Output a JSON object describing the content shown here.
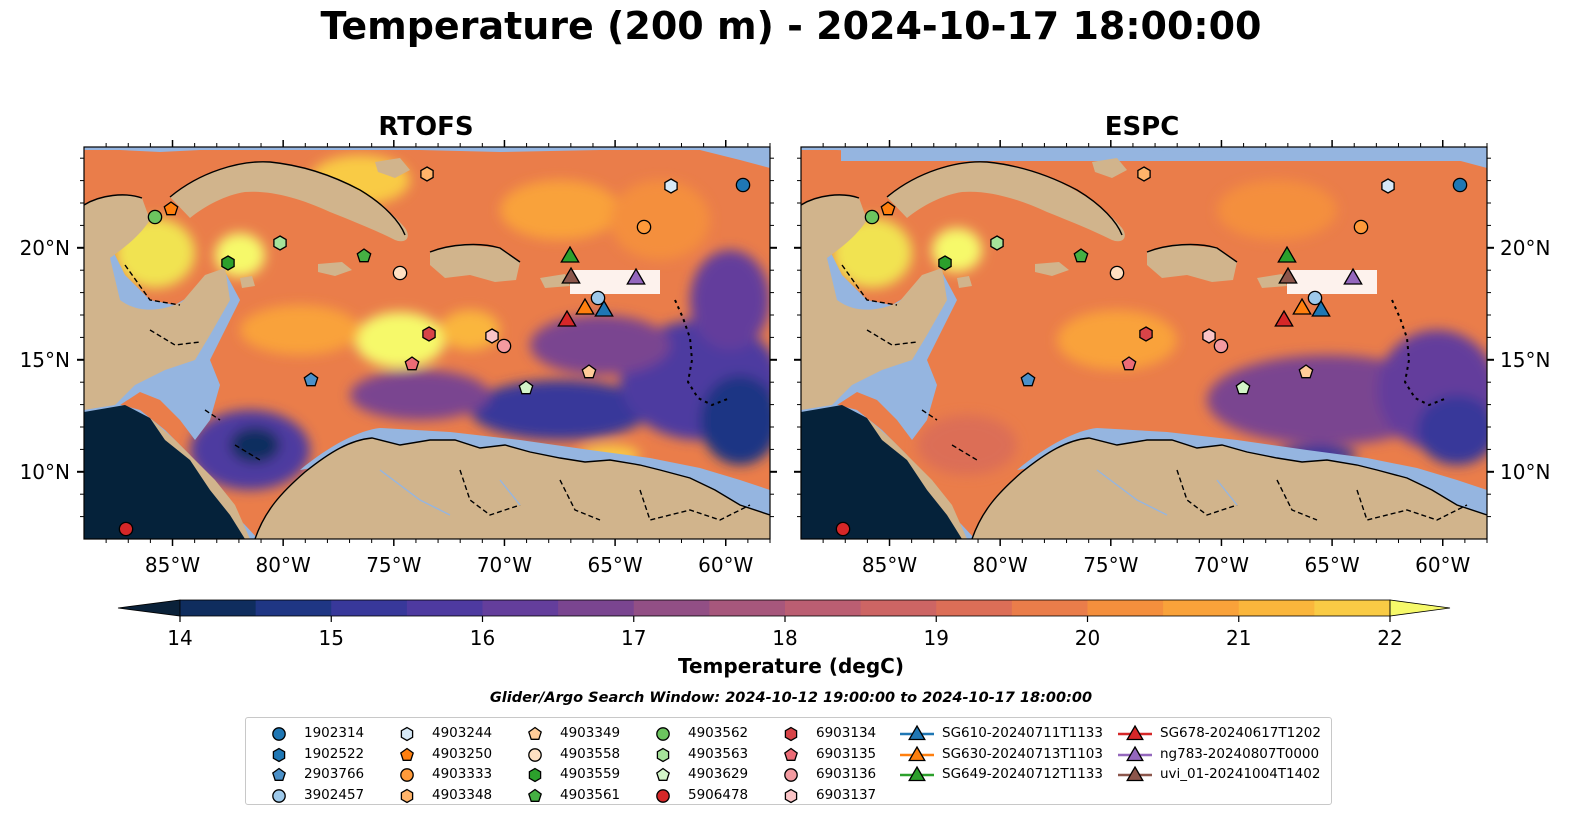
{
  "title": "Temperature (200 m) - 2024-10-17 18:00:00",
  "colors": {
    "ocean_shallow": "#95b5e0",
    "land": "#d1b48c",
    "outside": "#05223a",
    "colormap": [
      "#0a2139",
      "#0f2d5e",
      "#1f3684",
      "#38389a",
      "#4e3aa0",
      "#643e9c",
      "#7a4590",
      "#924f85",
      "#a7577c",
      "#bb5e72",
      "#cd6564",
      "#dc6e57",
      "#ea7d4a",
      "#f48f3d",
      "#f9a23a",
      "#fab63c",
      "#f9cb45",
      "#f1e351"
    ],
    "colormap_over": "#f6f96a"
  },
  "chart_data": [
    {
      "type": "heatmap",
      "title": "RTOFS",
      "x_ticks": [
        "85°W",
        "80°W",
        "75°W",
        "70°W",
        "65°W",
        "60°W"
      ],
      "y_ticks": [
        "20°N",
        "15°N",
        "10°N"
      ],
      "xlim": [
        -89,
        -58
      ],
      "ylim": [
        7,
        24.5
      ]
    },
    {
      "type": "heatmap",
      "title": "ESPC",
      "x_ticks": [
        "85°W",
        "80°W",
        "75°W",
        "70°W",
        "65°W",
        "60°W"
      ],
      "y_ticks": [
        "20°N",
        "15°N",
        "10°N"
      ],
      "xlim": [
        -89,
        -58
      ],
      "ylim": [
        7,
        24.5
      ]
    }
  ],
  "colorbar": {
    "label": "Temperature (degC)",
    "min": 14,
    "max": 22,
    "ticks": [
      "14",
      "15",
      "16",
      "17",
      "18",
      "19",
      "20",
      "21",
      "22"
    ]
  },
  "search_window": "Glider/Argo Search Window: 2024-10-12 19:00:00 to 2024-10-17 18:00:00",
  "legend": [
    {
      "label": "1902314",
      "marker": "circle",
      "color": "#1f77b4"
    },
    {
      "label": "1902522",
      "marker": "hexagon",
      "color": "#1f77b4"
    },
    {
      "label": "2903766",
      "marker": "pentagon",
      "color": "#4b90c8"
    },
    {
      "label": "3902457",
      "marker": "circle",
      "color": "#9ec9ea"
    },
    {
      "label": "4903244",
      "marker": "hexagon",
      "color": "#d6e8f6"
    },
    {
      "label": "4903250",
      "marker": "pentagon",
      "color": "#ff7f0e"
    },
    {
      "label": "4903333",
      "marker": "circle",
      "color": "#ff9a3a"
    },
    {
      "label": "4903348",
      "marker": "hexagon",
      "color": "#ffb46a"
    },
    {
      "label": "4903349",
      "marker": "pentagon",
      "color": "#ffcc99"
    },
    {
      "label": "4903558",
      "marker": "circle",
      "color": "#ffe0c2"
    },
    {
      "label": "4903559",
      "marker": "hexagon",
      "color": "#2ca02c"
    },
    {
      "label": "4903561",
      "marker": "pentagon",
      "color": "#45b043"
    },
    {
      "label": "4903562",
      "marker": "circle",
      "color": "#6cc45f"
    },
    {
      "label": "4903563",
      "marker": "hexagon",
      "color": "#a6e39a"
    },
    {
      "label": "4903629",
      "marker": "pentagon",
      "color": "#d3f5c8"
    },
    {
      "label": "5906478",
      "marker": "circle",
      "color": "#d62728"
    },
    {
      "label": "6903134",
      "marker": "hexagon",
      "color": "#d84448"
    },
    {
      "label": "6903135",
      "marker": "pentagon",
      "color": "#ec6c76"
    },
    {
      "label": "6903136",
      "marker": "circle",
      "color": "#f39aa0"
    },
    {
      "label": "6903137",
      "marker": "hexagon",
      "color": "#fac4c6"
    },
    {
      "label": "SG610-20240711T1133",
      "marker": "triangle",
      "color": "#1f77b4"
    },
    {
      "label": "SG630-20240713T1103",
      "marker": "triangle",
      "color": "#ff7f0e"
    },
    {
      "label": "SG649-20240712T1133",
      "marker": "triangle",
      "color": "#2ca02c"
    },
    {
      "label": "SG678-20240617T1202",
      "marker": "triangle",
      "color": "#d62728"
    },
    {
      "label": "ng783-20240807T0000",
      "marker": "triangle",
      "color": "#9467bd"
    },
    {
      "label": "uvi_01-20241004T1402",
      "marker": "triangle",
      "color": "#8c564b"
    }
  ]
}
